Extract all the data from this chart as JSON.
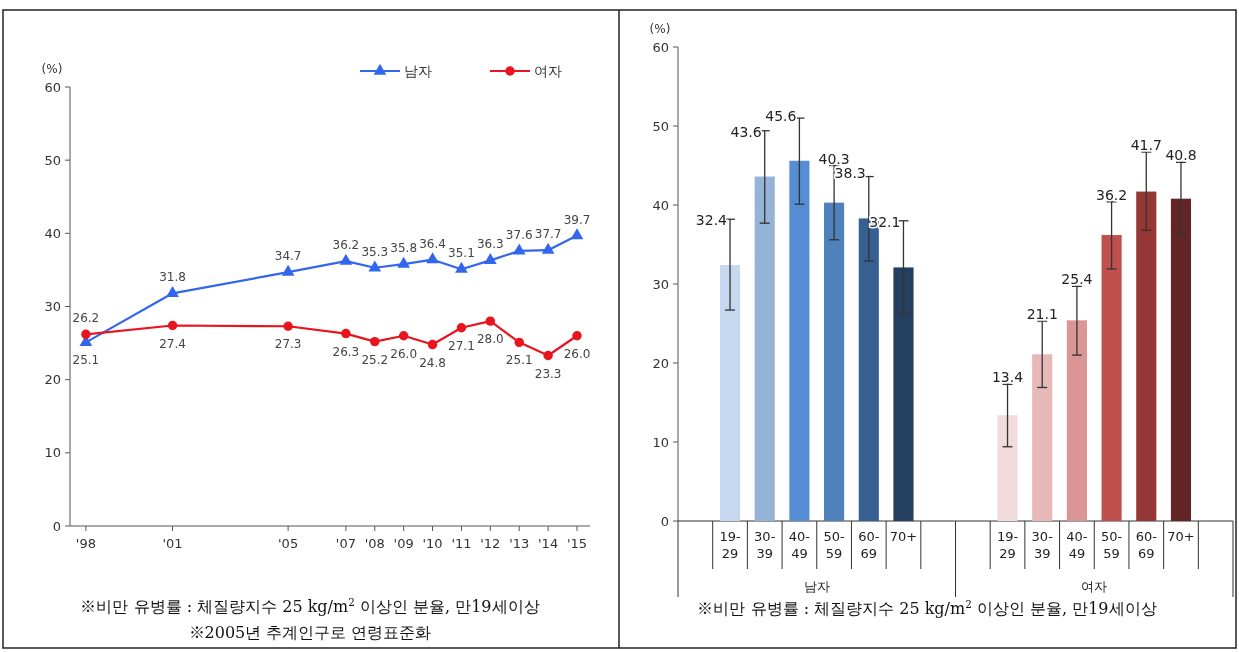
{
  "chart_data": [
    {
      "type": "line",
      "ylabel": "(%)",
      "xlim": [
        1997.45,
        2015.45
      ],
      "ylim": [
        0,
        60
      ],
      "yticks": [
        0,
        10,
        20,
        30,
        40,
        50,
        60
      ],
      "xticks": [
        {
          "value": 1998,
          "label": "'98"
        },
        {
          "value": 2001,
          "label": "'01"
        },
        {
          "value": 2005,
          "label": "'05"
        },
        {
          "value": 2007,
          "label": "'07"
        },
        {
          "value": 2008,
          "label": "'08"
        },
        {
          "value": 2009,
          "label": "'09"
        },
        {
          "value": 2010,
          "label": "'10"
        },
        {
          "value": 2011,
          "label": "'11"
        },
        {
          "value": 2012,
          "label": "'12"
        },
        {
          "value": 2013,
          "label": "'13"
        },
        {
          "value": 2014,
          "label": "'14"
        },
        {
          "value": 2015,
          "label": "'15"
        }
      ],
      "x": [
        1998,
        2001,
        2005,
        2007,
        2008,
        2009,
        2010,
        2011,
        2012,
        2013,
        2014,
        2015
      ],
      "series": [
        {
          "name": "남자",
          "color": "#3366ee",
          "marker": "triangle",
          "values": [
            25.1,
            31.8,
            34.7,
            36.2,
            35.3,
            35.8,
            36.4,
            35.1,
            36.3,
            37.6,
            37.7,
            39.7
          ],
          "value_labels": [
            "25.1",
            "31.8",
            "34.7",
            "36.2",
            "35.3",
            "35.8",
            "36.4",
            "35.1",
            "36.3",
            "37.6",
            "37.7",
            "39.7"
          ]
        },
        {
          "name": "여자",
          "color": "#e8141e",
          "marker": "circle",
          "values": [
            26.2,
            27.4,
            27.3,
            26.3,
            25.2,
            26.0,
            24.8,
            27.1,
            28.0,
            25.1,
            23.3,
            26.0
          ],
          "value_labels": [
            "26.2",
            "27.4",
            "27.3",
            "26.3",
            "25.2",
            "26.0",
            "24.8",
            "27.1",
            "28.0",
            "25.1",
            "23.3",
            "26.0"
          ]
        }
      ],
      "legend": "top right",
      "line_style": "solid",
      "annotations": [
        "※비만 유병률 : 체질량지수 25 kg/m$^{2}$ 이상인 분율, 만19세이상",
        "※2005년 추계인구로 연령표준화"
      ]
    },
    {
      "type": "bar",
      "ylabel": "(%)",
      "ylim": [
        0,
        60
      ],
      "yticks": [
        0,
        10,
        20,
        30,
        40,
        50,
        60
      ],
      "categories": [
        null,
        "19-29",
        "30-39",
        "40-49",
        "50-59",
        "60-69",
        "70+",
        null,
        null,
        "19-29",
        "30-39",
        "40-49",
        "50-59",
        "60-69",
        "70+",
        null
      ],
      "values": [
        null,
        32.4,
        43.6,
        45.6,
        40.3,
        38.3,
        32.1,
        null,
        null,
        13.4,
        21.1,
        25.4,
        36.2,
        41.7,
        40.8,
        null
      ],
      "colors": [
        null,
        "#c5d8f0",
        "#95b3d7",
        "#558ed5",
        "#4f81bd",
        "#376092",
        "#243f60",
        null,
        null,
        "#f2dcdb",
        "#e6b9b8",
        "#d99694",
        "#c0504d",
        "#953735",
        "#632523",
        null
      ],
      "errors": [
        null,
        [
          26.7,
          38.2
        ],
        [
          37.7,
          49.4
        ],
        [
          40.1,
          51.0
        ],
        [
          35.6,
          45.0
        ],
        [
          32.9,
          43.6
        ],
        [
          26.2,
          38.0
        ],
        null,
        null,
        [
          9.4,
          17.3
        ],
        [
          16.9,
          25.3
        ],
        [
          21.0,
          29.7
        ],
        [
          31.9,
          40.4
        ],
        [
          36.8,
          46.7
        ],
        [
          36.3,
          45.4
        ],
        null
      ],
      "data_labels": true,
      "annotations": [
        "남자",
        "여자",
        "※비만 유병률 : 체질량지수 25 kg/m$^{2}$ 이상인 분율, 만19세이상"
      ]
    }
  ]
}
